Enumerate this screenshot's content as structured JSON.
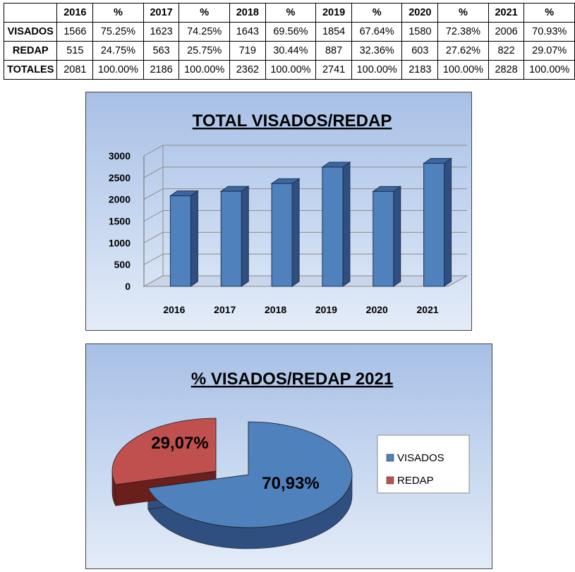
{
  "table": {
    "header": [
      "",
      "2016",
      "%",
      "2017",
      "%",
      "2018",
      "%",
      "2019",
      "%",
      "2020",
      "%",
      "2021",
      "%"
    ],
    "rows": [
      [
        "VISADOS",
        "1566",
        "75.25%",
        "1623",
        "74.25%",
        "1643",
        "69.56%",
        "1854",
        "67.64%",
        "1580",
        "72.38%",
        "2006",
        "70.93%"
      ],
      [
        "REDAP",
        "515",
        "24.75%",
        "563",
        "25.75%",
        "719",
        "30.44%",
        "887",
        "32.36%",
        "603",
        "27.62%",
        "822",
        "29.07%"
      ],
      [
        "TOTALES",
        "2081",
        "100.00%",
        "2186",
        "100.00%",
        "2362",
        "100.00%",
        "2741",
        "100.00%",
        "2183",
        "100.00%",
        "2828",
        "100.00%"
      ]
    ]
  },
  "chart_data": [
    {
      "type": "bar",
      "title": "TOTAL VISADOS/REDAP",
      "categories": [
        "2016",
        "2017",
        "2018",
        "2019",
        "2020",
        "2021"
      ],
      "values": [
        2081,
        2186,
        2362,
        2741,
        2183,
        2828
      ],
      "ylim": [
        0,
        3000
      ],
      "yticks": [
        "0",
        "500",
        "1000",
        "1500",
        "2000",
        "2500",
        "3000"
      ],
      "grid": true,
      "legend": "none",
      "colors": {
        "bar": "#4f81bd"
      }
    },
    {
      "type": "pie",
      "title": "% VISADOS/REDAP 2021",
      "labels": [
        "VISADOS",
        "REDAP"
      ],
      "values": [
        70.93,
        29.07
      ],
      "data_labels": [
        "70,93%",
        "29,07%"
      ],
      "legend": "right",
      "colors": [
        "#4f81bd",
        "#c0504d"
      ]
    }
  ]
}
